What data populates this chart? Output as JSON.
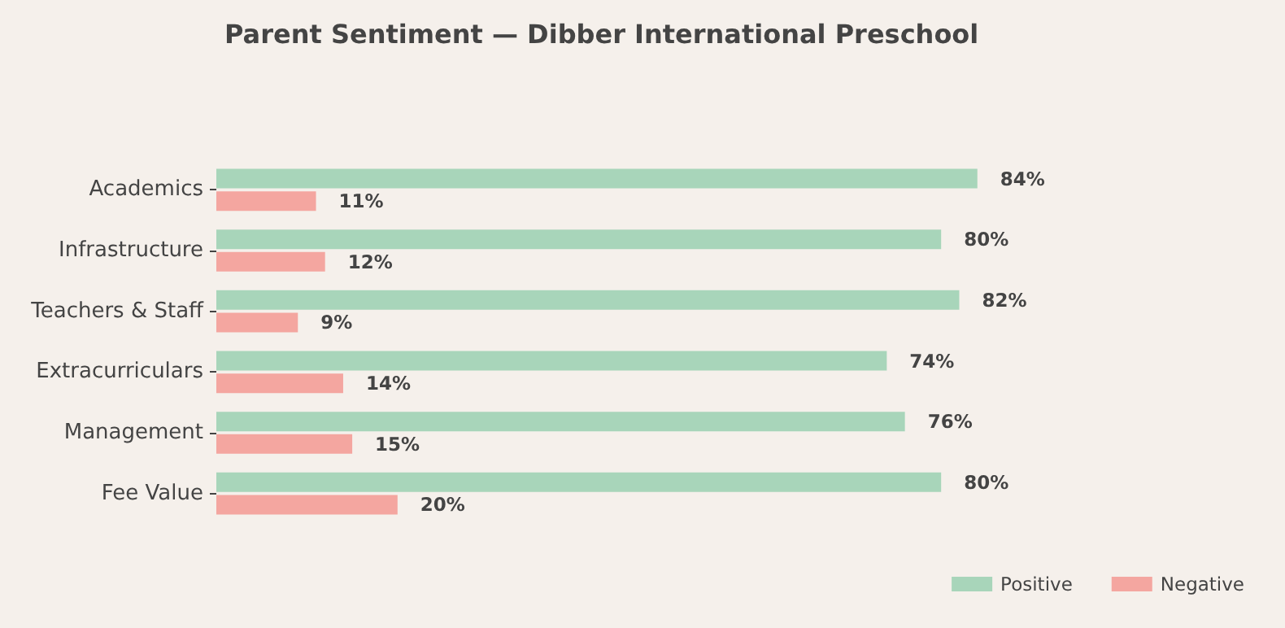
{
  "chart_data": {
    "type": "bar",
    "orientation": "horizontal",
    "title": "Parent Sentiment — Dibber International Preschool",
    "categories": [
      "Academics",
      "Infrastructure",
      "Teachers & Staff",
      "Extracurriculars",
      "Management",
      "Fee Value"
    ],
    "series": [
      {
        "name": "Positive",
        "color": "#a8d5ba",
        "values": [
          84,
          80,
          82,
          74,
          76,
          80
        ],
        "value_labels": [
          "84%",
          "80%",
          "82%",
          "74%",
          "76%",
          "80%"
        ]
      },
      {
        "name": "Negative",
        "color": "#f4a6a0",
        "values": [
          11,
          12,
          9,
          14,
          15,
          20
        ],
        "value_labels": [
          "11%",
          "12%",
          "9%",
          "14%",
          "15%",
          "20%"
        ]
      }
    ],
    "tick_labels": "y",
    "legend": "bottom right"
  }
}
